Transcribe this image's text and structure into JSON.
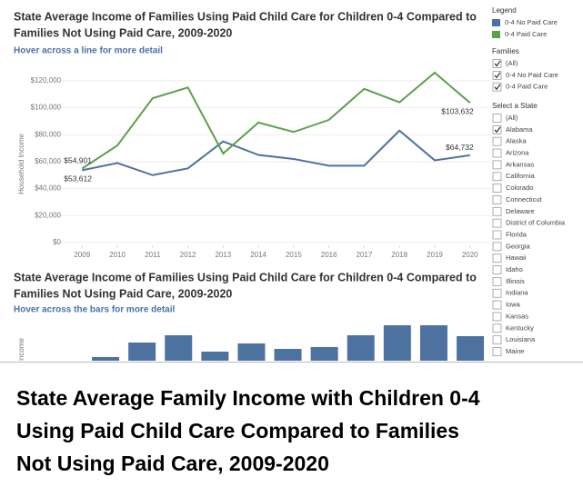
{
  "chart_data": [
    {
      "type": "line",
      "title": [
        "State Average Income of Families Using Paid Child Care for Children 0-4 Compared to",
        "Families Not Using Paid Care, 2009-2020"
      ],
      "subtitle": "Hover across a line for more detail",
      "y_label": "Household Income",
      "x": [
        2009,
        2010,
        2011,
        2012,
        2013,
        2014,
        2015,
        2016,
        2017,
        2018,
        2019,
        2020
      ],
      "xlim": [
        2008.4,
        2020.6
      ],
      "xticks": [
        2009,
        2010,
        2011,
        2012,
        2013,
        2014,
        2015,
        2016,
        2017,
        2018,
        2019,
        2020
      ],
      "ylim": [
        0,
        130000
      ],
      "yticks": [
        {
          "value": 0,
          "label": "$0"
        },
        {
          "value": 20000,
          "label": "$20,000"
        },
        {
          "value": 40000,
          "label": "$40,000"
        },
        {
          "value": 60000,
          "label": "$60,000"
        },
        {
          "value": 80000,
          "label": "$80,000"
        },
        {
          "value": 100000,
          "label": "$100,000"
        },
        {
          "value": 120000,
          "label": "$120,000"
        }
      ],
      "grid": true,
      "series": [
        {
          "name": "0-4 No Paid Care",
          "color": "#4e72a0",
          "values": [
            53612,
            59000,
            50000,
            55000,
            75000,
            65000,
            62000,
            57000,
            57000,
            83000,
            61000,
            64732
          ],
          "value_labels": [
            "$53,612",
            null,
            null,
            null,
            null,
            null,
            null,
            null,
            null,
            null,
            null,
            "$64,732"
          ]
        },
        {
          "name": "0-4 Paid Care",
          "color": "#5ea04c",
          "values": [
            54901,
            72000,
            107000,
            115000,
            66000,
            89000,
            82000,
            91000,
            114000,
            104000,
            126000,
            103632
          ],
          "value_labels": [
            "$54,901",
            null,
            null,
            null,
            null,
            null,
            null,
            null,
            null,
            null,
            null,
            "$103,632"
          ]
        }
      ]
    },
    {
      "type": "bar",
      "title": [
        "State Average Income of Families Using Paid Child Care for Children 0-4 Compared to",
        "Families Not Using Paid Care, 2009-2020"
      ],
      "subtitle": "Hover across the bars for more detail",
      "y_label": "Household Income",
      "categories": [
        null,
        null,
        null,
        null,
        null,
        null,
        null,
        null,
        null,
        null,
        null
      ],
      "values": [
        4,
        20,
        28,
        10,
        19,
        13,
        15,
        28,
        39,
        39,
        27
      ],
      "color": "#4e72a0",
      "ylim": [
        0,
        40
      ]
    }
  ],
  "legend": {
    "title": "Legend"
  },
  "families_filter": {
    "title": "Families",
    "options": [
      {
        "label": "(All)",
        "checked": true
      },
      {
        "label": "0-4 No Paid Care",
        "checked": true
      },
      {
        "label": "0-4 Paid Care",
        "checked": true
      }
    ]
  },
  "state_filter": {
    "title": "Select a State",
    "options": [
      {
        "label": "(All)",
        "checked": false
      },
      {
        "label": "Alabama",
        "checked": true
      },
      {
        "label": "Alaska",
        "checked": false
      },
      {
        "label": "Arizona",
        "checked": false
      },
      {
        "label": "Arkansas",
        "checked": false
      },
      {
        "label": "California",
        "checked": false
      },
      {
        "label": "Colorado",
        "checked": false
      },
      {
        "label": "Connecticut",
        "checked": false
      },
      {
        "label": "Delaware",
        "checked": false
      },
      {
        "label": "District of Columbia",
        "checked": false
      },
      {
        "label": "Florida",
        "checked": false
      },
      {
        "label": "Georgia",
        "checked": false
      },
      {
        "label": "Hawaii",
        "checked": false
      },
      {
        "label": "Idaho",
        "checked": false
      },
      {
        "label": "Illinois",
        "checked": false
      },
      {
        "label": "Indiana",
        "checked": false
      },
      {
        "label": "Iowa",
        "checked": false
      },
      {
        "label": "Kansas",
        "checked": false
      },
      {
        "label": "Kentucky",
        "checked": false
      },
      {
        "label": "Louisiana",
        "checked": false
      },
      {
        "label": "Maine",
        "checked": false
      }
    ]
  },
  "caption": [
    "State Average Family Income with Children 0-4",
    "Using Paid Child Care Compared to Families",
    "Not Using Paid Care, 2009-2020"
  ]
}
